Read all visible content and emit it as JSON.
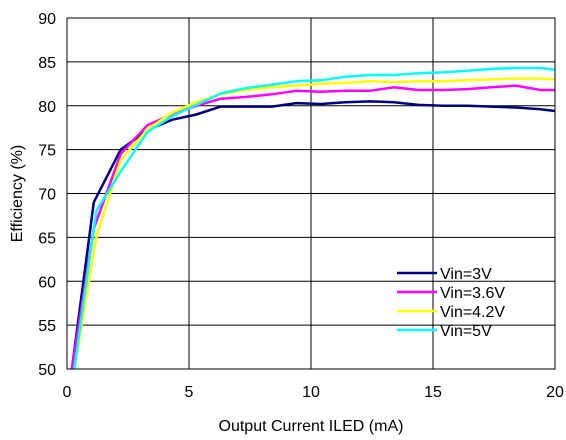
{
  "chart_data": {
    "type": "line",
    "xlabel": "Output Current ILED (mA)",
    "ylabel": "Efficiency  (%)",
    "xlim": [
      0,
      20
    ],
    "ylim": [
      50,
      90
    ],
    "xticks": [
      0,
      5,
      10,
      15,
      20
    ],
    "yticks": [
      50,
      55,
      60,
      65,
      70,
      75,
      80,
      85,
      90
    ],
    "grid": "major-x-and-y",
    "legend_position": "bottom-right",
    "series": [
      {
        "name": "Vin=3V",
        "color": "#000080",
        "x": [
          0.2,
          1.1,
          2.2,
          3.3,
          4.3,
          5.3,
          6.3,
          7.3,
          8.4,
          9.4,
          10.4,
          11.4,
          12.4,
          13.4,
          14.4,
          15.4,
          16.4,
          17.4,
          18.4,
          19.4,
          20
        ],
        "y": [
          50,
          69,
          75,
          77.2,
          78.4,
          79,
          79.9,
          79.9,
          79.9,
          80.3,
          80.2,
          80.4,
          80.5,
          80.4,
          80.1,
          80.0,
          80.0,
          79.9,
          79.8,
          79.6,
          79.4
        ]
      },
      {
        "name": "Vin=3.6V",
        "color": "#ff00ff",
        "x": [
          0.2,
          1.1,
          2.2,
          3.3,
          4.3,
          5.3,
          6.3,
          7.3,
          8.4,
          9.4,
          10.4,
          11.4,
          12.4,
          13.4,
          14.4,
          15.4,
          16.4,
          17.4,
          18.4,
          19.4,
          20
        ],
        "y": [
          50,
          66,
          74.5,
          77.8,
          79.0,
          80.0,
          80.8,
          81.0,
          81.3,
          81.7,
          81.6,
          81.7,
          81.7,
          82.1,
          81.8,
          81.8,
          81.9,
          82.1,
          82.3,
          81.8,
          81.8
        ]
      },
      {
        "name": "Vin=4.2V",
        "color": "#ffff00",
        "x": [
          0.3,
          1.2,
          2.2,
          3.3,
          4.3,
          5.3,
          6.3,
          7.3,
          8.4,
          9.4,
          10.4,
          11.4,
          12.4,
          13.4,
          14.4,
          15.4,
          16.4,
          17.4,
          18.4,
          19.4,
          20
        ],
        "y": [
          50,
          65,
          73.8,
          77.3,
          79.2,
          80.4,
          81.3,
          81.8,
          82.1,
          82.3,
          82.5,
          82.6,
          82.8,
          82.7,
          82.8,
          82.8,
          82.9,
          83.0,
          83.1,
          83.1,
          83.0
        ]
      },
      {
        "name": "Vin=5V",
        "color": "#00ffff",
        "x": [
          0.3,
          1.2,
          2.2,
          3.3,
          4.3,
          5.3,
          6.3,
          7.3,
          8.4,
          9.4,
          10.4,
          11.4,
          12.4,
          13.4,
          14.4,
          15.4,
          16.4,
          17.4,
          18.4,
          19.4,
          20
        ],
        "y": [
          50,
          68,
          72.5,
          77.0,
          78.8,
          80.1,
          81.4,
          82.0,
          82.4,
          82.8,
          82.9,
          83.3,
          83.5,
          83.5,
          83.7,
          83.8,
          84.0,
          84.2,
          84.3,
          84.3,
          84.1
        ]
      }
    ]
  }
}
